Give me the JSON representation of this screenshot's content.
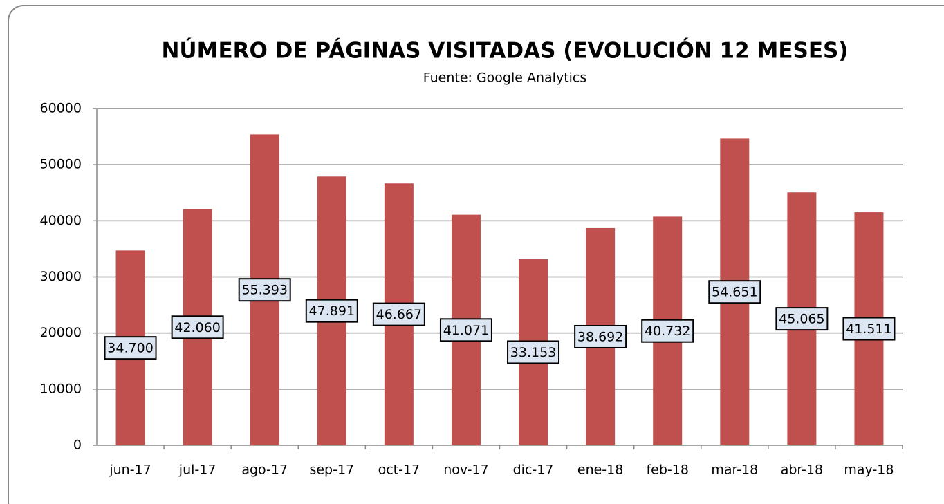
{
  "chart_data": {
    "type": "bar",
    "title": "NÚMERO DE PÁGINAS VISITADAS  (EVOLUCIÓN 12 MESES)",
    "subtitle": "Fuente: Google Analytics",
    "categories": [
      "jun-17",
      "jul-17",
      "ago-17",
      "sep-17",
      "oct-17",
      "nov-17",
      "dic-17",
      "ene-18",
      "feb-18",
      "mar-18",
      "abr-18",
      "may-18"
    ],
    "values": [
      34700,
      42060,
      55393,
      47891,
      46667,
      41071,
      33153,
      38692,
      40732,
      54651,
      45065,
      41511
    ],
    "value_labels": [
      "34.700",
      "42.060",
      "55.393",
      "47.891",
      "46.667",
      "41.071",
      "33.153",
      "38.692",
      "40.732",
      "54.651",
      "45.065",
      "41.511"
    ],
    "color": "#c0504d",
    "ylim": [
      0,
      60000
    ],
    "yticks": [
      0,
      10000,
      20000,
      30000,
      40000,
      50000,
      60000
    ],
    "grid": true
  }
}
